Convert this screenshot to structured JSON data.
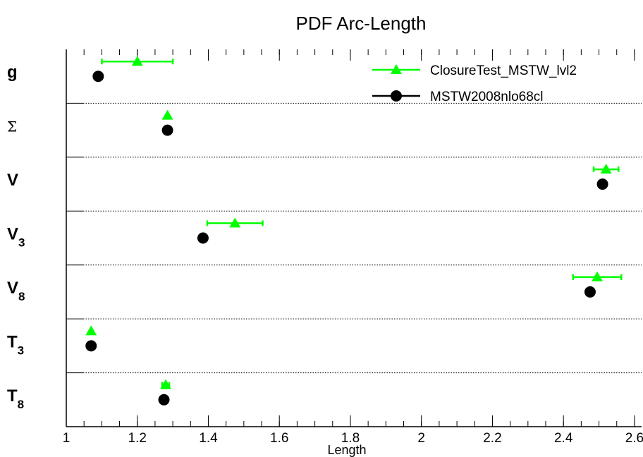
{
  "chart_data": {
    "type": "scatter",
    "title": "PDF Arc-Length",
    "xlabel": "Length",
    "ylabel": "",
    "xlim": [
      1.0,
      2.62
    ],
    "x_ticks": [
      "1",
      "1.2",
      "1.4",
      "1.6",
      "1.8",
      "2",
      "2.2",
      "2.4",
      "2.6"
    ],
    "categories": [
      {
        "main": "g",
        "sub": ""
      },
      {
        "main": "Σ",
        "sub": ""
      },
      {
        "main": "V",
        "sub": ""
      },
      {
        "main": "V",
        "sub": "3"
      },
      {
        "main": "V",
        "sub": "8"
      },
      {
        "main": "T",
        "sub": "3"
      },
      {
        "main": "T",
        "sub": "8"
      }
    ],
    "series": [
      {
        "name": "ClosureTest_MSTW_lvl2",
        "marker": "triangle",
        "color": "#00ff00",
        "values": [
          1.2,
          1.285,
          2.52,
          1.475,
          2.495,
          1.07,
          1.28
        ],
        "errors": [
          0.1,
          0.0,
          0.035,
          0.078,
          0.068,
          0.0,
          0.01
        ]
      },
      {
        "name": "MSTW2008nlo68cl",
        "marker": "circle",
        "color": "#000000",
        "values": [
          1.09,
          1.285,
          2.51,
          1.385,
          2.475,
          1.07,
          1.275
        ],
        "errors": [
          0,
          0,
          0,
          0,
          0,
          0,
          0
        ]
      }
    ],
    "grid": "horizontal dotted separators",
    "legend_position": "top-right"
  }
}
